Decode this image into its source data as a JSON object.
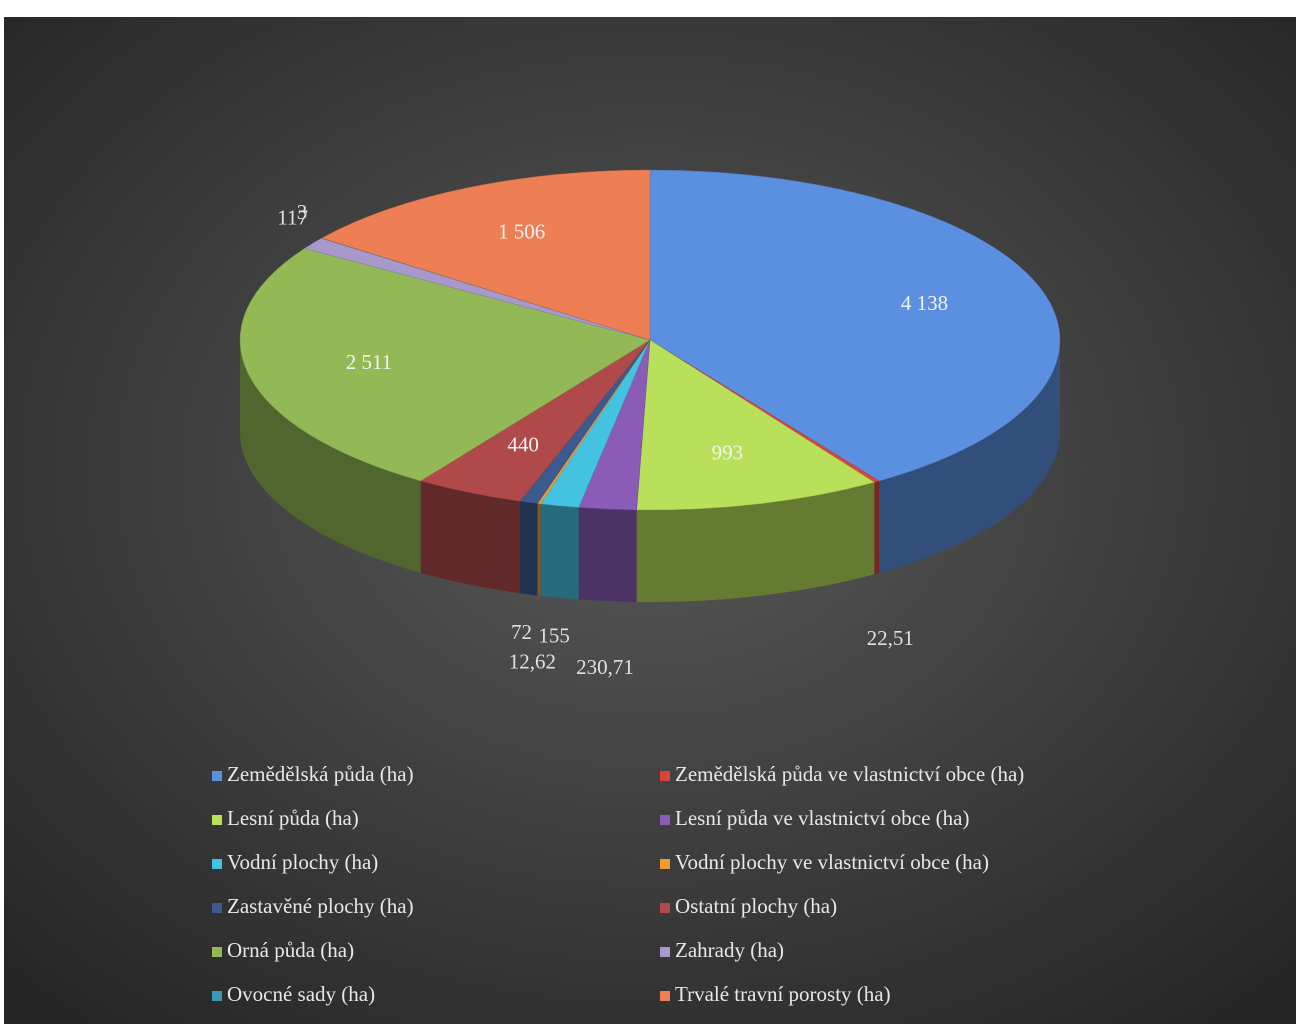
{
  "chart_data": {
    "type": "pie",
    "categories": [
      "Zemědělská půda (ha)",
      "Zemědělská půda ve vlastnictví obce (ha)",
      "Lesní půda (ha)",
      "Lesní půda ve vlastnictví obce (ha)",
      "Vodní plochy (ha)",
      "Vodní plochy ve vlastnictví obce (ha)",
      "Zastavěné plochy (ha)",
      "Ostatní plochy (ha)",
      "Orná půda (ha)",
      "Zahrady (ha)",
      "Ovocné sady (ha)",
      "Trvalé travní porosty (ha)"
    ],
    "values": [
      4138,
      22.51,
      993,
      230.71,
      155,
      12.62,
      72,
      440,
      2511,
      117,
      3,
      1506
    ],
    "value_labels": [
      "4 138",
      "22,51",
      "993",
      "230,71",
      "155",
      "12,62",
      "72",
      "440",
      "2 511",
      "117",
      "3",
      "1 506"
    ],
    "colors": [
      "#5b8fe0",
      "#d9453d",
      "#b8e05a",
      "#8a5cb8",
      "#43c3e0",
      "#f39a33",
      "#3a5a90",
      "#b04a4a",
      "#93b856",
      "#a898cc",
      "#3a9ab5",
      "#ee7f55"
    ],
    "legend": "bottom"
  }
}
